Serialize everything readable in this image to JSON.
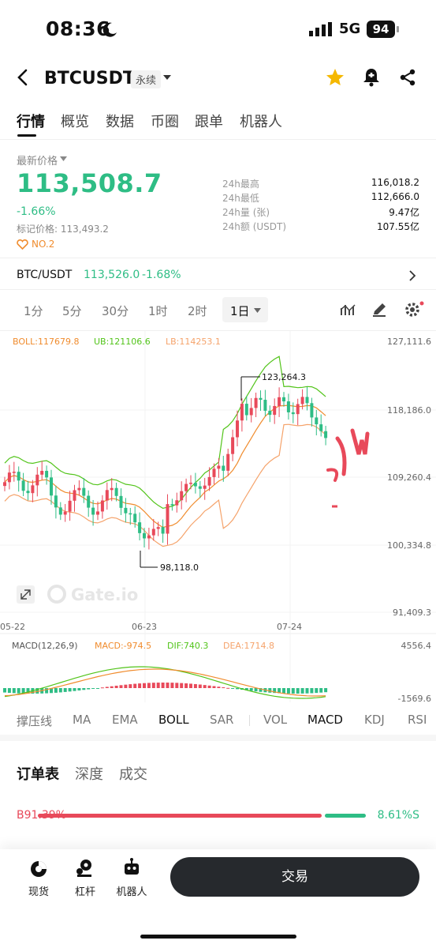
{
  "status_bar": {
    "time": "08:36",
    "network": "5G",
    "battery": "94"
  },
  "header": {
    "pair": "BTCUSDT",
    "contract_type": "永续"
  },
  "tabs": [
    "行情",
    "概览",
    "数据",
    "币圈",
    "跟单",
    "机器人"
  ],
  "price_section": {
    "latest_label": "最新价格",
    "price": "113,508.7",
    "change": "-1.66%",
    "mark_label": "标记价格: 113,493.2",
    "rank": "NO.2",
    "stats": [
      {
        "label": "24h最高",
        "value": "116,018.2"
      },
      {
        "label": "24h最低",
        "value": "112,666.0"
      },
      {
        "label": "24h量 (张)",
        "value": "9.47亿"
      },
      {
        "label": "24h额 (USDT)",
        "value": "107.55亿"
      }
    ]
  },
  "spot_row": {
    "pair": "BTC/USDT",
    "price": "113,526.0",
    "change": "-1.68%"
  },
  "timeframes": [
    "1分",
    "5分",
    "30分",
    "1时",
    "2时",
    "1日"
  ],
  "active_timeframe": "1日",
  "chart_data": {
    "type": "candlestick",
    "indicator_legend": {
      "boll": "BOLL:117679.8",
      "ub": "UB:121106.6",
      "lb": "LB:114253.1"
    },
    "price_axis": [
      "127,111.6",
      "118,186.0",
      "109,260.4",
      "100,334.8",
      "91,409.3"
    ],
    "ylim": [
      91409.3,
      127111.6
    ],
    "date_labels": [
      "05-22",
      "06-23",
      "07-24"
    ],
    "high_annotation": "123,264.3",
    "low_annotation": "98,118.0",
    "watermark": "Gate.io",
    "macd_legend": {
      "macd": "MACD(12,26,9)",
      "value": "MACD:-974.5",
      "dif": "DIF:740.3",
      "dea": "DEA:1714.8"
    },
    "macd_axis": [
      "4556.4",
      "-1569.6"
    ],
    "colors": {
      "up": "#e8495a",
      "down": "#2ebd85",
      "ub": "#52c41a",
      "mid": "#f08c2e",
      "lb": "#f5a36b"
    }
  },
  "indicators": [
    "撑压线",
    "MA",
    "EMA",
    "BOLL",
    "SAR",
    "VOL",
    "MACD",
    "KDJ",
    "RSI"
  ],
  "active_indicators": [
    "BOLL",
    "MACD"
  ],
  "orderbook": {
    "tabs": [
      "订单表",
      "深度",
      "成交"
    ],
    "buy": "B91.39%",
    "sell": "8.61%S"
  },
  "bottom_nav": {
    "items": [
      "现货",
      "杠杆",
      "机器人"
    ],
    "trade": "交易"
  }
}
